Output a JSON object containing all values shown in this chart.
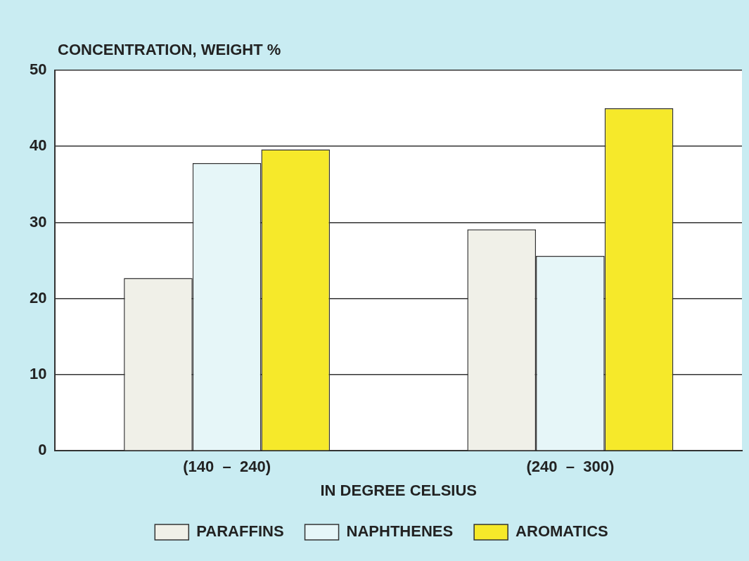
{
  "chart_data": {
    "type": "bar",
    "ylabel": "CONCENTRATION, WEIGHT %",
    "xlabel": "IN DEGREE CELSIUS",
    "categories": [
      "(140  –  240)",
      "(240  –  300)"
    ],
    "series": [
      {
        "name": "PARAFFINS",
        "color": "#f0f0e8",
        "values": [
          22.7,
          29.1
        ]
      },
      {
        "name": "NAPHTHENES",
        "color": "#e6f6f8",
        "values": [
          37.8,
          25.6
        ]
      },
      {
        "name": "AROMATICS",
        "color": "#f6e92a",
        "values": [
          39.6,
          45
        ]
      }
    ],
    "ylim": [
      0,
      50
    ],
    "yticks": [
      0,
      10,
      20,
      30,
      40,
      50
    ],
    "grid": "y",
    "legend": "bottom"
  }
}
